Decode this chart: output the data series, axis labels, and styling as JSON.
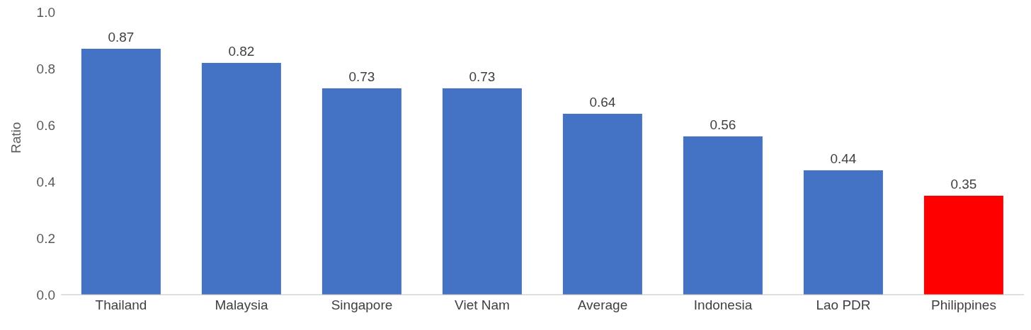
{
  "chart_data": {
    "type": "bar",
    "ylabel": "Ratio",
    "categories": [
      "Thailand",
      "Malaysia",
      "Singapore",
      "Viet Nam",
      "Average",
      "Indonesia",
      "Lao PDR",
      "Philippines"
    ],
    "values": [
      0.87,
      0.82,
      0.73,
      0.73,
      0.64,
      0.56,
      0.44,
      0.35
    ],
    "colors": [
      "#4472c4",
      "#4472c4",
      "#4472c4",
      "#4472c4",
      "#4472c4",
      "#4472c4",
      "#4472c4",
      "#ff0000"
    ],
    "ylim": [
      0,
      1.0
    ],
    "yticks": [
      {
        "value": 0,
        "label": "0.0"
      },
      {
        "value": 0.2,
        "label": "0.2"
      },
      {
        "value": 0.4,
        "label": "0.4"
      },
      {
        "value": 0.6,
        "label": "0.6"
      },
      {
        "value": 0.8,
        "label": "0.8"
      },
      {
        "value": 1.0,
        "label": "1.0"
      }
    ],
    "grid": false,
    "legend": false,
    "data_labels": true
  }
}
